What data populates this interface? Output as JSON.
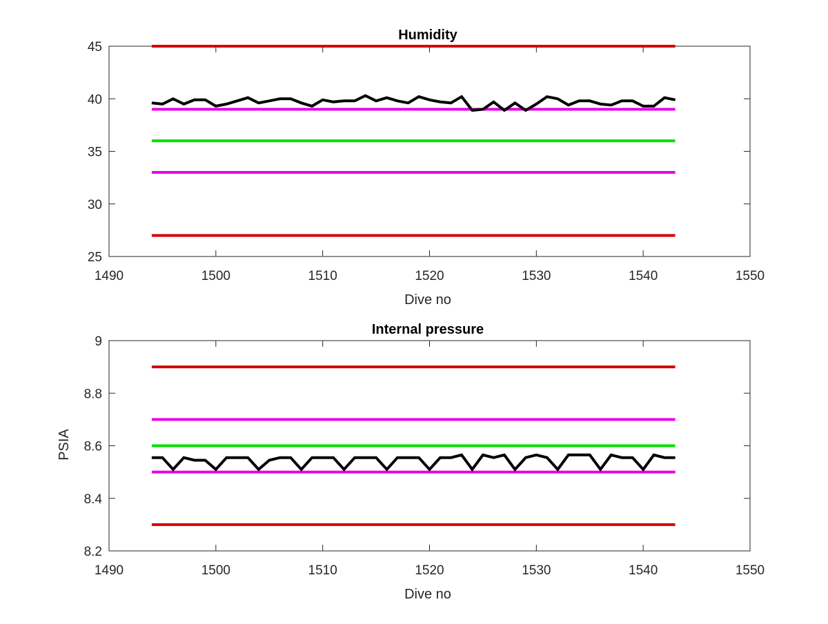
{
  "chart_data": [
    {
      "type": "line",
      "title": "Humidity",
      "xlabel": "Dive no",
      "ylabel": "",
      "xlim": [
        1490,
        1550
      ],
      "ylim": [
        25,
        45
      ],
      "xticks": [
        1490,
        1500,
        1510,
        1520,
        1530,
        1540,
        1550
      ],
      "yticks": [
        25,
        30,
        35,
        40,
        45
      ],
      "xtick_labels": [
        "1490",
        "1500",
        "1510",
        "1520",
        "1530",
        "1540",
        "1550"
      ],
      "ytick_labels": [
        "25",
        "30",
        "35",
        "40",
        "45"
      ],
      "grid": false,
      "legend": null,
      "reference_lines": [
        {
          "y": 45,
          "x": [
            1494,
            1543
          ],
          "color": "#d40000"
        },
        {
          "y": 39,
          "x": [
            1494,
            1543
          ],
          "color": "#e600e6"
        },
        {
          "y": 36,
          "x": [
            1494,
            1543
          ],
          "color": "#00e000"
        },
        {
          "y": 33,
          "x": [
            1494,
            1543
          ],
          "color": "#e600e6"
        },
        {
          "y": 27,
          "x": [
            1494,
            1543
          ],
          "color": "#d40000"
        }
      ],
      "series": [
        {
          "color": "#000000",
          "x": [
            1494,
            1495,
            1496,
            1497,
            1498,
            1499,
            1500,
            1501,
            1502,
            1503,
            1504,
            1505,
            1506,
            1507,
            1508,
            1509,
            1510,
            1511,
            1512,
            1513,
            1514,
            1515,
            1516,
            1517,
            1518,
            1519,
            1520,
            1521,
            1522,
            1523,
            1524,
            1525,
            1526,
            1527,
            1528,
            1529,
            1530,
            1531,
            1532,
            1533,
            1534,
            1535,
            1536,
            1537,
            1538,
            1539,
            1540,
            1541,
            1542,
            1543
          ],
          "y": [
            39.6,
            39.5,
            40.0,
            39.5,
            39.9,
            39.9,
            39.3,
            39.5,
            39.8,
            40.1,
            39.6,
            39.8,
            40.0,
            40.0,
            39.6,
            39.3,
            39.9,
            39.7,
            39.8,
            39.8,
            40.3,
            39.8,
            40.1,
            39.8,
            39.6,
            40.2,
            39.9,
            39.7,
            39.6,
            40.2,
            38.9,
            39.0,
            39.7,
            38.9,
            39.6,
            38.9,
            39.5,
            40.2,
            40.0,
            39.4,
            39.8,
            39.8,
            39.5,
            39.4,
            39.8,
            39.8,
            39.3,
            39.3,
            40.1,
            39.9
          ]
        }
      ]
    },
    {
      "type": "line",
      "title": "Internal pressure",
      "xlabel": "Dive no",
      "ylabel": "PSIA",
      "xlim": [
        1490,
        1550
      ],
      "ylim": [
        8.2,
        9.0
      ],
      "xticks": [
        1490,
        1500,
        1510,
        1520,
        1530,
        1540,
        1550
      ],
      "yticks": [
        8.2,
        8.4,
        8.6,
        8.8,
        9.0
      ],
      "xtick_labels": [
        "1490",
        "1500",
        "1510",
        "1520",
        "1530",
        "1540",
        "1550"
      ],
      "ytick_labels": [
        "8.2",
        "8.4",
        "8.6",
        "8.8",
        "9"
      ],
      "grid": false,
      "legend": null,
      "reference_lines": [
        {
          "y": 8.9,
          "x": [
            1494,
            1543
          ],
          "color": "#d40000"
        },
        {
          "y": 8.7,
          "x": [
            1494,
            1543
          ],
          "color": "#e600e6"
        },
        {
          "y": 8.6,
          "x": [
            1494,
            1543
          ],
          "color": "#00e000"
        },
        {
          "y": 8.5,
          "x": [
            1494,
            1543
          ],
          "color": "#e600e6"
        },
        {
          "y": 8.3,
          "x": [
            1494,
            1543
          ],
          "color": "#d40000"
        }
      ],
      "series": [
        {
          "color": "#000000",
          "x": [
            1494,
            1495,
            1496,
            1497,
            1498,
            1499,
            1500,
            1501,
            1502,
            1503,
            1504,
            1505,
            1506,
            1507,
            1508,
            1509,
            1510,
            1511,
            1512,
            1513,
            1514,
            1515,
            1516,
            1517,
            1518,
            1519,
            1520,
            1521,
            1522,
            1523,
            1524,
            1525,
            1526,
            1527,
            1528,
            1529,
            1530,
            1531,
            1532,
            1533,
            1534,
            1535,
            1536,
            1537,
            1538,
            1539,
            1540,
            1541,
            1542,
            1543
          ],
          "y": [
            8.555,
            8.555,
            8.51,
            8.555,
            8.545,
            8.545,
            8.51,
            8.555,
            8.555,
            8.555,
            8.51,
            8.545,
            8.555,
            8.555,
            8.51,
            8.555,
            8.555,
            8.555,
            8.51,
            8.555,
            8.555,
            8.555,
            8.51,
            8.555,
            8.555,
            8.555,
            8.51,
            8.555,
            8.555,
            8.565,
            8.51,
            8.565,
            8.555,
            8.565,
            8.51,
            8.555,
            8.565,
            8.555,
            8.51,
            8.565,
            8.565,
            8.565,
            8.51,
            8.565,
            8.555,
            8.555,
            8.51,
            8.565,
            8.555,
            8.555
          ]
        }
      ]
    }
  ]
}
